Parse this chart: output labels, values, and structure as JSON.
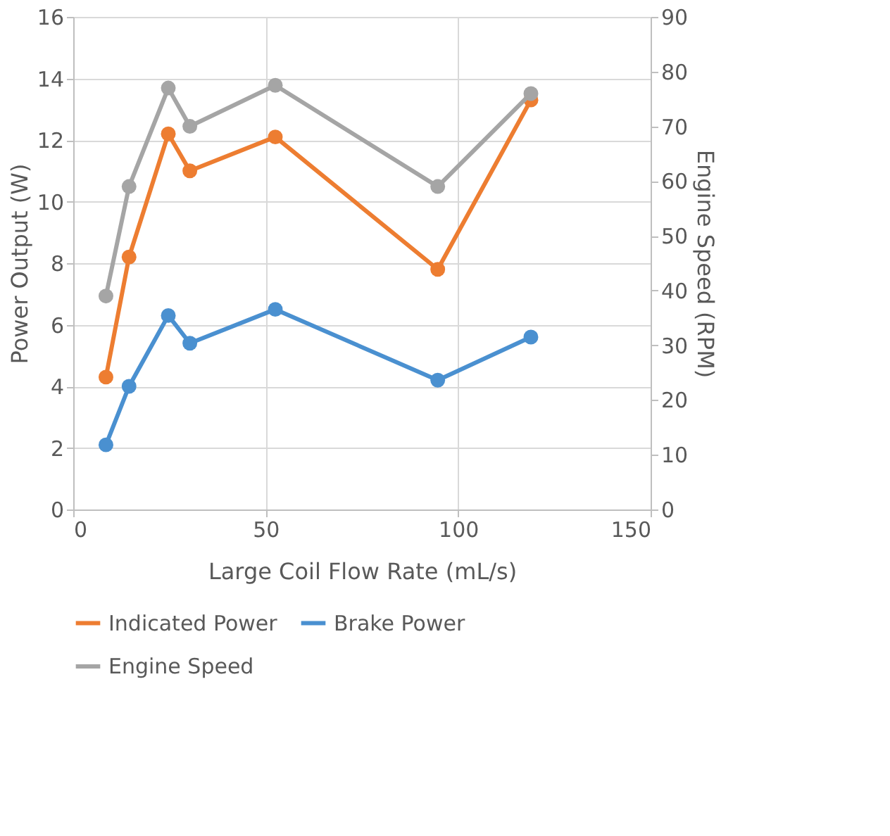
{
  "chart_data": {
    "type": "line",
    "xlabel": "Large Coil Flow Rate (mL/s)",
    "ylabel": "Power Output (W)",
    "y2label": "Engine Speed (RPM)",
    "x": [
      8.5,
      14.5,
      24.7,
      30.3,
      52.5,
      94.7,
      118.9
    ],
    "series": [
      {
        "name": "Indicated Power",
        "color": "#ed7d31",
        "values": [
          4.3,
          8.2,
          12.2,
          11.0,
          12.1,
          7.8,
          13.3
        ]
      },
      {
        "name": "Brake Power",
        "color": "#4a90d0",
        "values": [
          2.1,
          4.0,
          6.3,
          5.4,
          6.5,
          4.2,
          5.6
        ]
      },
      {
        "name": "Engine Speed",
        "color": "#a5a5a5",
        "axis": "y2",
        "values": [
          39,
          59,
          77,
          70,
          77.5,
          59,
          76
        ]
      }
    ],
    "xlim": [
      0,
      150
    ],
    "xticks": [
      0,
      50,
      100,
      150
    ],
    "ylim": [
      0,
      16
    ],
    "yticks": [
      0,
      2,
      4,
      6,
      8,
      10,
      12,
      14,
      16
    ],
    "y2lim": [
      0,
      90
    ],
    "y2ticks": [
      0,
      10,
      20,
      30,
      40,
      50,
      60,
      70,
      80,
      90
    ],
    "grid": true,
    "legend": "bottom",
    "marker": "circle",
    "line_style": "solid"
  }
}
